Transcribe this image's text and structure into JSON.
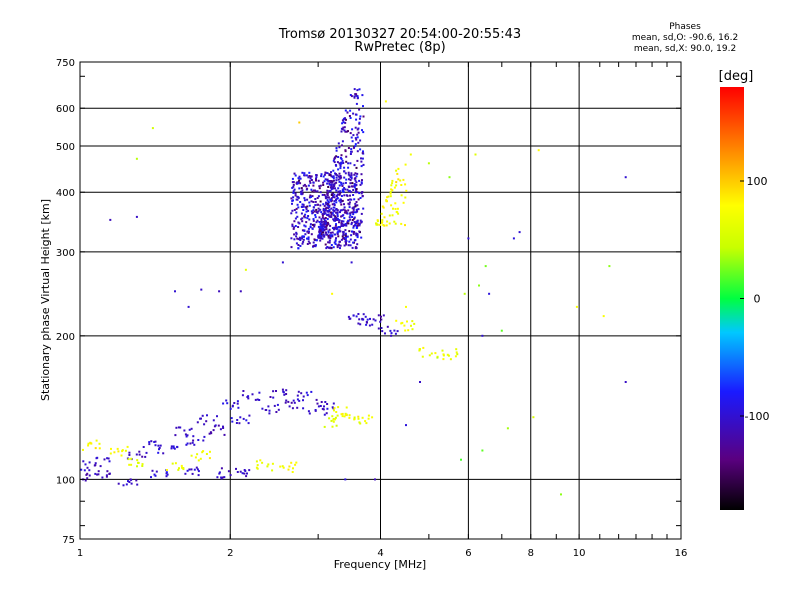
{
  "header": {
    "title": "Tromsø 20130327 20:54:00-20:55:43",
    "subtitle": "RwPretec (8p)",
    "phases_label": "Phases",
    "stat_o": "mean, sd,O: -90.6, 16.2",
    "stat_x": "mean, sd,X:  90.0, 19.2"
  },
  "colorbar": {
    "unit_label": "[deg]",
    "range": [
      -180,
      180
    ],
    "ticks": [
      "100",
      "0",
      "-100"
    ],
    "tick_values": [
      100,
      0,
      -100
    ]
  },
  "chart_data": {
    "type": "scatter",
    "xlabel": "Frequency [MHz]",
    "ylabel": "Stationary phase Virtual Height [km]",
    "xscale": "log",
    "yscale": "log",
    "xlim": [
      1,
      16
    ],
    "ylim": [
      75,
      750
    ],
    "x_ticks": [
      1,
      2,
      4,
      6,
      8,
      10,
      16
    ],
    "x_tick_labels": [
      "1",
      "2",
      "4",
      "6",
      "8",
      "10",
      "16"
    ],
    "y_ticks": [
      75,
      100,
      200,
      300,
      400,
      500,
      600,
      750
    ],
    "y_tick_labels": [
      "75",
      "100",
      "200",
      "300",
      "400",
      "500",
      "600",
      "750"
    ],
    "grid": true,
    "series": [
      {
        "traces": [
          [
            1.0,
            101,
            -115
          ],
          [
            1.1,
            103,
            -110
          ],
          [
            1.25,
            99,
            -105
          ],
          [
            1.45,
            102,
            -100
          ],
          [
            1.7,
            104,
            -105
          ],
          [
            1.95,
            103,
            -110
          ],
          [
            2.1,
            104,
            -105
          ],
          [
            1.0,
            107,
            -100
          ],
          [
            1.1,
            109,
            -105
          ],
          [
            1.3,
            112,
            -110
          ],
          [
            1.5,
            116,
            -100
          ],
          [
            1.7,
            121,
            -105
          ],
          [
            1.9,
            127,
            -110
          ],
          [
            2.1,
            134,
            -100
          ],
          [
            2.4,
            140,
            -105
          ],
          [
            2.7,
            143,
            -110
          ],
          [
            3.0,
            140,
            -100
          ],
          [
            1.4,
            118,
            -100
          ],
          [
            1.6,
            126,
            -105
          ],
          [
            1.8,
            133,
            -110
          ],
          [
            2.0,
            143,
            -100
          ],
          [
            2.2,
            150,
            -105
          ],
          [
            2.5,
            152,
            -110
          ],
          [
            2.8,
            150,
            -100
          ],
          [
            3.1,
            144,
            -105
          ],
          [
            3.2,
            132,
            60
          ],
          [
            3.35,
            139,
            70
          ],
          [
            3.5,
            136,
            75
          ],
          [
            3.7,
            133,
            65
          ],
          [
            2.35,
            107,
            70
          ],
          [
            2.6,
            106,
            75
          ],
          [
            1.05,
            118,
            80
          ],
          [
            1.2,
            115,
            75
          ],
          [
            1.3,
            108,
            60
          ],
          [
            1.55,
            106,
            70
          ],
          [
            1.75,
            112,
            75
          ],
          [
            3.6,
            218,
            -105
          ],
          [
            3.75,
            212,
            -100
          ],
          [
            3.9,
            218,
            -110
          ],
          [
            4.15,
            207,
            -105
          ],
          [
            4.5,
            210,
            70
          ],
          [
            5.0,
            185,
            75
          ],
          [
            5.5,
            183,
            70
          ]
        ]
      }
    ],
    "dense_fills": [
      {
        "xlim": [
          2.65,
          3.6
        ],
        "ylim": [
          305,
          440
        ],
        "note": "cluster"
      },
      {
        "xlim": [
          3.0,
          3.7
        ],
        "ylim": [
          320,
          660
        ],
        "note": "column"
      }
    ],
    "scattered_points": [
      [
        1.15,
        350,
        -110
      ],
      [
        1.3,
        355,
        -105
      ],
      [
        1.4,
        545,
        50
      ],
      [
        1.3,
        470,
        40
      ],
      [
        1.55,
        248,
        -100
      ],
      [
        1.65,
        230,
        -100
      ],
      [
        1.75,
        250,
        -105
      ],
      [
        1.9,
        248,
        -110
      ],
      [
        2.1,
        248,
        -110
      ],
      [
        2.15,
        275,
        60
      ],
      [
        2.55,
        285,
        -100
      ],
      [
        2.75,
        560,
        100
      ],
      [
        4.1,
        620,
        80
      ],
      [
        4.3,
        420,
        95
      ],
      [
        4.45,
        380,
        80
      ],
      [
        4.6,
        480,
        70
      ],
      [
        4.8,
        160,
        -105
      ],
      [
        4.2,
        200,
        -110
      ],
      [
        4.3,
        215,
        80
      ],
      [
        4.5,
        230,
        75
      ],
      [
        5.0,
        460,
        40
      ],
      [
        5.5,
        430,
        30
      ],
      [
        6.0,
        320,
        -100
      ],
      [
        6.2,
        480,
        60
      ],
      [
        6.5,
        280,
        25
      ],
      [
        7.4,
        320,
        -95
      ],
      [
        7.6,
        330,
        -100
      ],
      [
        8.3,
        490,
        80
      ],
      [
        9.2,
        93,
        30
      ],
      [
        9.9,
        230,
        75
      ],
      [
        11.2,
        220,
        75
      ],
      [
        11.5,
        280,
        30
      ],
      [
        12.4,
        430,
        -100
      ],
      [
        12.4,
        160,
        -105
      ],
      [
        5.8,
        110,
        15
      ],
      [
        6.4,
        115,
        20
      ],
      [
        7.2,
        128,
        35
      ],
      [
        8.1,
        135,
        55
      ],
      [
        5.2,
        180,
        40
      ],
      [
        5.7,
        183,
        50
      ],
      [
        3.4,
        100,
        -95
      ],
      [
        3.9,
        100,
        -110
      ],
      [
        4.5,
        130,
        -95
      ],
      [
        5.9,
        245,
        40
      ],
      [
        6.3,
        255,
        30
      ],
      [
        6.4,
        200,
        -100
      ],
      [
        6.6,
        245,
        -95
      ],
      [
        7.0,
        205,
        20
      ],
      [
        3.2,
        245,
        80
      ],
      [
        3.5,
        285,
        -100
      ]
    ]
  }
}
